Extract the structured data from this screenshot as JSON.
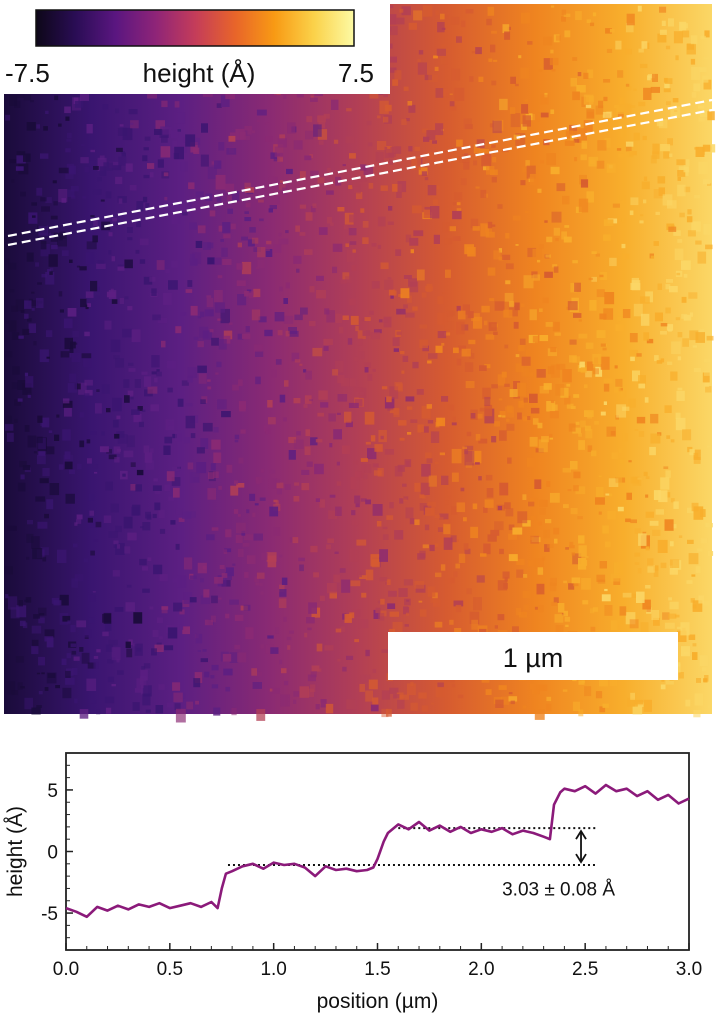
{
  "colorbar": {
    "min_label": "-7.5",
    "max_label": "7.5",
    "title": "height (Å)",
    "colormap": "inferno",
    "colors": [
      "#0d0718",
      "#2a0d55",
      "#5a1680",
      "#8e2478",
      "#c43c5a",
      "#e8642a",
      "#f89a14",
      "#fbd24a",
      "#fcfaa4"
    ]
  },
  "height_map": {
    "scale_bar_label": "1 µm",
    "band_colors": [
      "#1a0b3a",
      "#3a1570",
      "#5c1f82",
      "#8a2a73",
      "#b23f55",
      "#d65b30",
      "#ef8420",
      "#f8ae2c",
      "#fbd766"
    ],
    "line_cut_color": "#ffffff"
  },
  "chart_data": {
    "type": "line",
    "title": "",
    "xlabel": "position (µm)",
    "ylabel": "height (Å)",
    "xlim": [
      0.0,
      3.0
    ],
    "ylim": [
      -8,
      8
    ],
    "x_ticks": [
      "0.0",
      "0.5",
      "1.0",
      "1.5",
      "2.0",
      "2.5",
      "3.0"
    ],
    "y_ticks": [
      "-5",
      "0",
      "5"
    ],
    "grid": false,
    "line_color": "#8b1a7a",
    "series": [
      {
        "x": [
          0.0,
          0.05,
          0.1,
          0.15,
          0.2,
          0.25,
          0.3,
          0.35,
          0.4,
          0.45,
          0.5,
          0.55,
          0.6,
          0.65,
          0.7,
          0.73,
          0.75,
          0.77,
          0.8,
          0.85,
          0.9,
          0.95,
          1.0,
          1.05,
          1.1,
          1.15,
          1.2,
          1.25,
          1.3,
          1.35,
          1.4,
          1.45,
          1.48,
          1.5,
          1.53,
          1.55,
          1.6,
          1.65,
          1.7,
          1.75,
          1.8,
          1.85,
          1.9,
          1.95,
          2.0,
          2.05,
          2.1,
          2.15,
          2.2,
          2.25,
          2.3,
          2.33,
          2.35,
          2.38,
          2.4,
          2.45,
          2.5,
          2.55,
          2.6,
          2.65,
          2.7,
          2.75,
          2.8,
          2.85,
          2.9,
          2.95,
          3.0
        ],
        "y": [
          -4.6,
          -4.9,
          -5.3,
          -4.5,
          -4.8,
          -4.4,
          -4.7,
          -4.3,
          -4.5,
          -4.2,
          -4.6,
          -4.4,
          -4.2,
          -4.5,
          -4.1,
          -4.6,
          -3.0,
          -1.8,
          -1.6,
          -1.2,
          -1.0,
          -1.4,
          -0.9,
          -1.1,
          -1.0,
          -1.3,
          -2.0,
          -1.2,
          -1.5,
          -1.4,
          -1.6,
          -1.5,
          -1.3,
          -0.6,
          0.8,
          1.5,
          2.2,
          1.8,
          2.4,
          1.7,
          2.1,
          1.6,
          2.0,
          1.5,
          1.8,
          1.6,
          1.9,
          1.4,
          1.7,
          1.5,
          1.2,
          1.0,
          3.8,
          4.8,
          5.1,
          4.9,
          5.3,
          4.7,
          5.4,
          4.9,
          5.1,
          4.5,
          4.9,
          4.2,
          4.6,
          3.9,
          4.3
        ]
      }
    ],
    "annotation": {
      "text": "3.03 ± 0.08 Å",
      "upper_level": 1.9,
      "lower_level": -1.1,
      "upper_x_range": [
        1.6,
        2.55
      ],
      "lower_x_range": [
        0.78,
        2.55
      ],
      "arrow_x": 2.48,
      "text_x": 2.1,
      "text_y": -3.0
    }
  }
}
